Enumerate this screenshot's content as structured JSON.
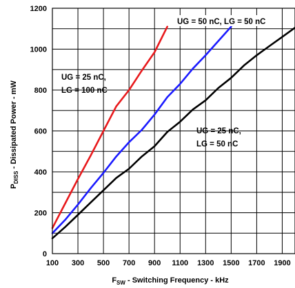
{
  "chart_data": {
    "type": "line",
    "ylabel_main": "P",
    "ylabel_sub": "DISS",
    "ylabel_rest": " - Dissipated Power - mW",
    "xlabel_main": "F",
    "xlabel_sub": "SW",
    "xlabel_rest": " - Switching Frequency - kHz",
    "xlim": [
      100,
      2000
    ],
    "ylim": [
      0,
      1200
    ],
    "x_ticks": [
      100,
      300,
      500,
      700,
      900,
      1100,
      1300,
      1500,
      1700,
      1900
    ],
    "y_ticks": [
      0,
      200,
      400,
      600,
      800,
      1000,
      1200
    ],
    "grid": true,
    "series": [
      {
        "name": "UG = 25 nC, LG = 100 nC",
        "color": "#e8191c",
        "x": [
          100,
          200,
          300,
          400,
          500,
          600,
          700,
          800,
          900,
          1000
        ],
        "y": [
          125,
          245,
          365,
          480,
          600,
          720,
          800,
          895,
          985,
          1110
        ]
      },
      {
        "name": "UG = 50 nC, LG = 50 nC",
        "color": "#1a1aff",
        "x": [
          100,
          200,
          300,
          400,
          500,
          600,
          700,
          800,
          900,
          1000,
          1100,
          1200,
          1300,
          1400,
          1500
        ],
        "y": [
          100,
          165,
          240,
          320,
          395,
          475,
          545,
          605,
          680,
          765,
          830,
          905,
          970,
          1040,
          1110
        ]
      },
      {
        "name": "UG = 25 nC, LG = 50 nC",
        "color": "#000000",
        "x": [
          100,
          200,
          300,
          400,
          500,
          600,
          700,
          800,
          900,
          1000,
          1100,
          1200,
          1300,
          1400,
          1500,
          1600,
          1700,
          1800,
          1900,
          2000
        ],
        "y": [
          75,
          130,
          190,
          250,
          310,
          370,
          415,
          475,
          525,
          595,
          645,
          705,
          750,
          810,
          860,
          920,
          970,
          1015,
          1060,
          1105
        ]
      }
    ],
    "annotations": [
      {
        "lines": [
          "UG = 50 nC, LG = 50 nC"
        ]
      },
      {
        "lines": [
          "UG = 25 nC,",
          "LG = 100 nC"
        ]
      },
      {
        "lines": [
          "UG = 25 nC,",
          "LG = 50 nC"
        ]
      }
    ]
  }
}
